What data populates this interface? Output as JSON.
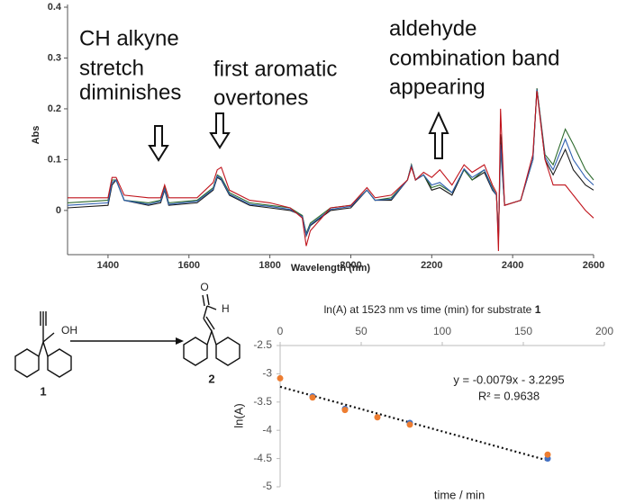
{
  "chart_data": [
    {
      "type": "line",
      "x_label": "Wavelength (nm)",
      "y_label": "Abs",
      "xlim": [
        1300,
        2600
      ],
      "xticks": [
        1400,
        1600,
        1800,
        2000,
        2200,
        2400,
        2600
      ],
      "ylim": [
        -0.087,
        0.4
      ],
      "yticks": [
        0,
        0.1,
        0.2,
        0.3,
        0.4
      ],
      "annotations": [
        "CH alkyne",
        "stretch",
        "diminishes",
        "first aromatic",
        "overtones",
        "aldehyde",
        "combination band",
        "appearing"
      ],
      "x": [
        1300,
        1400,
        1410,
        1420,
        1440,
        1500,
        1530,
        1540,
        1550,
        1620,
        1660,
        1670,
        1680,
        1700,
        1750,
        1800,
        1850,
        1880,
        1890,
        1900,
        1950,
        2000,
        2040,
        2060,
        2100,
        2140,
        2150,
        2160,
        2180,
        2200,
        2220,
        2250,
        2280,
        2300,
        2330,
        2350,
        2360,
        2365,
        2370,
        2380,
        2420,
        2450,
        2460,
        2480,
        2500,
        2530,
        2550,
        2580,
        2600
      ],
      "series": [
        {
          "color": "#1a1a1a",
          "values": [
            0.005,
            0.01,
            0.05,
            0.06,
            0.02,
            0.01,
            0.015,
            0.04,
            0.01,
            0.015,
            0.04,
            0.065,
            0.06,
            0.03,
            0.01,
            0.005,
            0,
            -0.01,
            -0.05,
            -0.03,
            0,
            0.005,
            0.04,
            0.02,
            0.02,
            0.06,
            0.09,
            0.06,
            0.07,
            0.04,
            0.045,
            0.03,
            0.08,
            0.06,
            0.075,
            0.04,
            0.03,
            -0.06,
            0.15,
            0.01,
            0.02,
            0.1,
            0.24,
            0.1,
            0.07,
            0.12,
            0.08,
            0.05,
            0.04
          ]
        },
        {
          "color": "#2e6b2e",
          "values": [
            0.015,
            0.02,
            0.06,
            0.06,
            0.02,
            0.015,
            0.02,
            0.045,
            0.015,
            0.02,
            0.045,
            0.07,
            0.065,
            0.035,
            0.015,
            0.01,
            0.005,
            -0.01,
            -0.045,
            -0.025,
            0.005,
            0.01,
            0.04,
            0.02,
            0.025,
            0.06,
            0.09,
            0.06,
            0.07,
            0.045,
            0.05,
            0.035,
            0.08,
            0.06,
            0.08,
            0.045,
            0.03,
            -0.05,
            0.12,
            0.01,
            0.02,
            0.1,
            0.24,
            0.11,
            0.09,
            0.16,
            0.13,
            0.08,
            0.06
          ]
        },
        {
          "color": "#2f5fb0",
          "values": [
            0.01,
            0.015,
            0.055,
            0.06,
            0.02,
            0.012,
            0.018,
            0.042,
            0.012,
            0.018,
            0.042,
            0.068,
            0.062,
            0.032,
            0.012,
            0.008,
            0.002,
            -0.012,
            -0.048,
            -0.028,
            0.002,
            0.008,
            0.04,
            0.02,
            0.022,
            0.06,
            0.088,
            0.06,
            0.07,
            0.05,
            0.055,
            0.035,
            0.082,
            0.065,
            0.08,
            0.042,
            0.03,
            -0.055,
            0.13,
            0.01,
            0.02,
            0.1,
            0.238,
            0.105,
            0.08,
            0.14,
            0.1,
            0.065,
            0.05
          ]
        },
        {
          "color": "#c0141c",
          "values": [
            0.025,
            0.025,
            0.065,
            0.065,
            0.03,
            0.025,
            0.025,
            0.05,
            0.025,
            0.025,
            0.055,
            0.08,
            0.085,
            0.04,
            0.02,
            0.015,
            0.005,
            -0.015,
            -0.07,
            -0.04,
            0.005,
            0.01,
            0.045,
            0.025,
            0.03,
            0.06,
            0.085,
            0.06,
            0.075,
            0.065,
            0.08,
            0.05,
            0.09,
            0.075,
            0.09,
            0.05,
            0.035,
            -0.08,
            0.2,
            0.01,
            0.02,
            0.11,
            0.235,
            0.1,
            0.05,
            0.05,
            0.03,
            0.0,
            -0.015
          ]
        }
      ]
    },
    {
      "type": "scatter",
      "title": "ln(A) at 1523 nm vs time (min) for substrate",
      "title_bold": "1",
      "x_label": "time / min",
      "y_label": "ln(A)",
      "xlim": [
        0,
        200
      ],
      "xticks": [
        0,
        50,
        100,
        150,
        200
      ],
      "ylim": [
        -5,
        -2.5
      ],
      "yticks": [
        -2.5,
        -3,
        -3.5,
        -4,
        -4.5,
        -5
      ],
      "series": [
        {
          "color": "#4472c4",
          "x": [
            20,
            40,
            80,
            165
          ],
          "values": [
            -3.4,
            -3.62,
            -3.87,
            -4.5
          ]
        },
        {
          "color": "#ed7d31",
          "x": [
            0,
            20,
            40,
            60,
            80,
            165
          ],
          "values": [
            -3.08,
            -3.42,
            -3.64,
            -3.77,
            -3.9,
            -4.43
          ]
        }
      ],
      "trendline": {
        "slope": -0.0079,
        "intercept": -3.2295,
        "equation": "y = -0.0079x - 3.2295",
        "r_squared_label": "R² = 0.9638"
      }
    }
  ],
  "scheme": {
    "reactant_label": "1",
    "product_label": "2",
    "hydroxyl": "OH",
    "oxygen": "O",
    "hydrogen": "H"
  }
}
